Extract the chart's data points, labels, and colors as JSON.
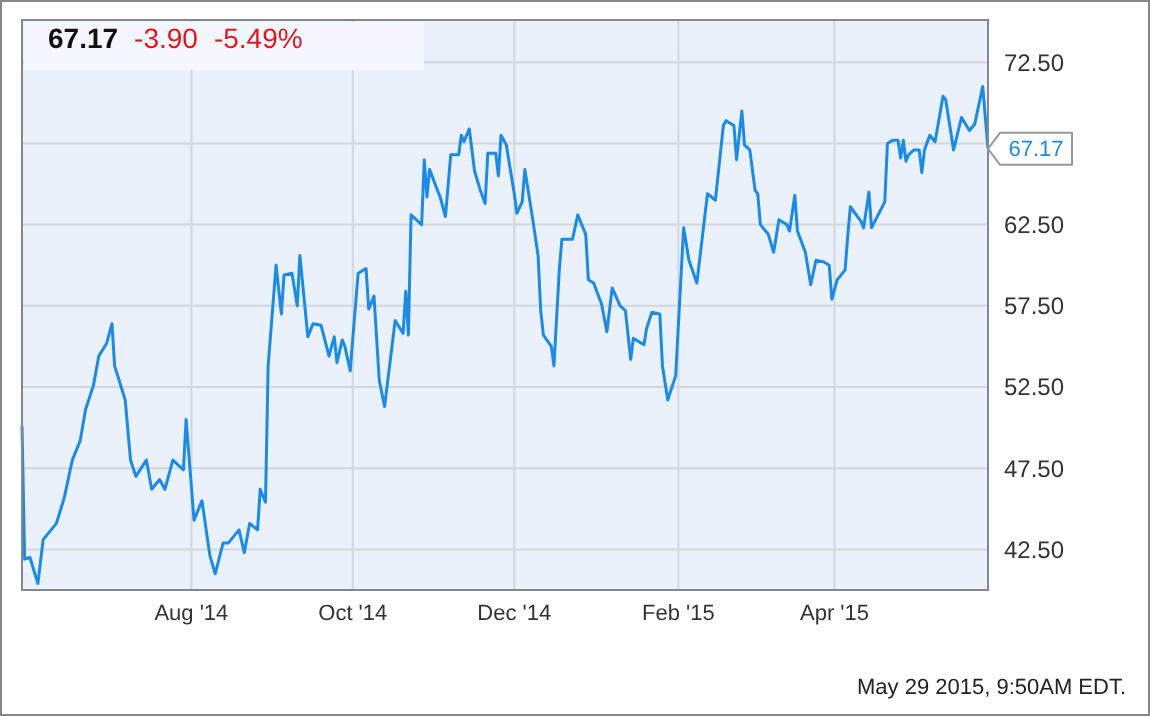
{
  "chart_data": {
    "type": "line",
    "title": "67.17",
    "subtitle": "-3.90 -5.49%",
    "annotations": [
      {
        "text": "67.17",
        "x": "2015-05-29",
        "y": 67.17
      },
      "May 29 2015, 9:50AM EDT."
    ],
    "xlim": [
      "2014-05-29",
      "2015-05-29"
    ],
    "xticks": [
      {
        "value": "2014-08-01",
        "label": "Aug '14"
      },
      {
        "value": "2014-10-01",
        "label": "Oct '14"
      },
      {
        "value": "2014-12-01",
        "label": "Dec '14"
      },
      {
        "value": "2015-02-01",
        "label": "Feb '15"
      },
      {
        "value": "2015-04-01",
        "label": "Apr '15"
      }
    ],
    "ylim": [
      40,
      75.1
    ],
    "yticks": [
      {
        "value": 42.5,
        "label": "42.50"
      },
      {
        "value": 47.5,
        "label": "47.50"
      },
      {
        "value": 52.5,
        "label": "52.50"
      },
      {
        "value": 57.5,
        "label": "57.50"
      },
      {
        "value": 62.5,
        "label": "62.50"
      },
      {
        "value": 67.5,
        "label": null
      },
      {
        "value": 72.5,
        "label": "72.50"
      }
    ],
    "grid": true,
    "marker": "none",
    "line_style": "solid",
    "series": [
      {
        "color": "#1a8be8",
        "x": [
          "2014-05-29",
          "2014-05-30",
          "2014-06-01",
          "2014-06-04",
          "2014-06-06",
          "2014-06-11",
          "2014-06-14",
          "2014-06-17",
          "2014-06-20",
          "2014-06-22",
          "2014-06-25",
          "2014-06-27",
          "2014-06-30",
          "2014-07-02",
          "2014-07-03",
          "2014-07-07",
          "2014-07-09",
          "2014-07-11",
          "2014-07-15",
          "2014-07-17",
          "2014-07-20",
          "2014-07-22",
          "2014-07-25",
          "2014-07-29",
          "2014-07-30",
          "2014-08-02",
          "2014-08-05",
          "2014-08-08",
          "2014-08-10",
          "2014-08-13",
          "2014-08-15",
          "2014-08-19",
          "2014-08-21",
          "2014-08-23",
          "2014-08-26",
          "2014-08-27",
          "2014-08-29",
          "2014-08-30",
          "2014-09-02",
          "2014-09-04",
          "2014-09-05",
          "2014-09-08",
          "2014-09-10",
          "2014-09-11",
          "2014-09-14",
          "2014-09-16",
          "2014-09-19",
          "2014-09-22",
          "2014-09-24",
          "2014-09-25",
          "2014-09-27",
          "2014-09-28",
          "2014-09-30",
          "2014-10-03",
          "2014-10-06",
          "2014-10-07",
          "2014-10-09",
          "2014-10-11",
          "2014-10-13",
          "2014-10-17",
          "2014-10-20",
          "2014-10-21",
          "2014-10-22",
          "2014-10-23",
          "2014-10-27",
          "2014-10-28",
          "2014-10-29",
          "2014-10-30",
          "2014-11-02",
          "2014-11-03",
          "2014-11-05",
          "2014-11-07",
          "2014-11-10",
          "2014-11-11",
          "2014-11-12",
          "2014-11-14",
          "2014-11-16",
          "2014-11-18",
          "2014-11-20",
          "2014-11-21",
          "2014-11-24",
          "2014-11-25",
          "2014-11-26",
          "2014-11-28",
          "2014-12-01",
          "2014-12-02",
          "2014-12-04",
          "2014-12-05",
          "2014-12-08",
          "2014-12-10",
          "2014-12-11",
          "2014-12-12",
          "2014-12-15",
          "2014-12-16",
          "2014-12-18",
          "2014-12-19",
          "2014-12-23",
          "2014-12-25",
          "2014-12-28",
          "2014-12-29",
          "2014-12-31",
          "2015-01-03",
          "2015-01-05",
          "2015-01-07",
          "2015-01-10",
          "2015-01-12",
          "2015-01-14",
          "2015-01-15",
          "2015-01-19",
          "2015-01-20",
          "2015-01-22",
          "2015-01-25",
          "2015-01-26",
          "2015-01-28",
          "2015-01-31",
          "2015-02-01",
          "2015-02-03",
          "2015-02-05",
          "2015-02-08",
          "2015-02-12",
          "2015-02-15",
          "2015-02-18",
          "2015-02-19",
          "2015-02-22",
          "2015-02-23",
          "2015-02-25",
          "2015-02-26",
          "2015-02-28",
          "2015-03-02",
          "2015-03-03",
          "2015-03-04",
          "2015-03-07",
          "2015-03-09",
          "2015-03-11",
          "2015-03-14",
          "2015-03-15",
          "2015-03-17",
          "2015-03-18",
          "2015-03-21",
          "2015-03-23",
          "2015-03-25",
          "2015-03-28",
          "2015-03-30",
          "2015-03-31",
          "2015-04-02",
          "2015-04-05",
          "2015-04-06",
          "2015-04-07",
          "2015-04-11",
          "2015-04-12",
          "2015-04-14",
          "2015-04-15",
          "2015-04-20",
          "2015-04-21",
          "2015-04-23",
          "2015-04-25",
          "2015-04-26",
          "2015-04-27",
          "2015-04-28",
          "2015-04-29",
          "2015-05-01",
          "2015-05-03",
          "2015-05-04",
          "2015-05-05",
          "2015-05-07",
          "2015-05-09",
          "2015-05-12",
          "2015-05-13",
          "2015-05-16",
          "2015-05-19",
          "2015-05-22",
          "2015-05-24",
          "2015-05-27",
          "2015-05-29"
        ],
        "values": [
          50.1,
          41.9,
          42.0,
          40.4,
          43.1,
          44.1,
          45.7,
          48.0,
          49.2,
          51.1,
          52.6,
          54.4,
          55.2,
          56.4,
          53.8,
          51.7,
          48.0,
          47.0,
          48.0,
          46.2,
          46.8,
          46.2,
          48.0,
          47.4,
          50.5,
          44.3,
          45.5,
          42.1,
          41.0,
          42.9,
          42.9,
          43.7,
          42.3,
          44.1,
          43.7,
          46.2,
          45.4,
          53.8,
          60.0,
          57.0,
          59.4,
          59.5,
          57.5,
          60.6,
          55.6,
          56.4,
          56.3,
          54.4,
          55.6,
          54.0,
          55.4,
          55.0,
          53.5,
          59.5,
          59.8,
          57.3,
          58.1,
          52.9,
          51.3,
          56.6,
          55.8,
          58.4,
          55.7,
          63.1,
          62.5,
          66.5,
          64.2,
          65.9,
          64.6,
          64.2,
          63.0,
          66.8,
          66.8,
          68.0,
          67.6,
          68.4,
          65.8,
          64.7,
          63.8,
          66.9,
          66.9,
          65.5,
          68.0,
          67.4,
          64.4,
          63.2,
          63.9,
          65.9,
          62.8,
          60.6,
          57.2,
          55.7,
          55.0,
          53.8,
          59.7,
          61.6,
          61.6,
          63.1,
          61.9,
          59.1,
          58.9,
          57.6,
          55.9,
          58.6,
          57.5,
          57.2,
          54.2,
          55.5,
          55.1,
          56.1,
          57.1,
          57.0,
          53.8,
          51.7,
          53.2,
          56.3,
          62.3,
          60.3,
          58.9,
          64.4,
          64.0,
          68.6,
          68.9,
          68.6,
          66.5,
          69.5,
          67.4,
          67.1,
          64.6,
          64.4,
          62.5,
          61.9,
          60.8,
          62.8,
          62.5,
          62.1,
          64.3,
          62.1,
          60.8,
          58.8,
          60.3,
          60.2,
          60.0,
          57.9,
          59.1,
          59.7,
          61.8,
          63.6,
          62.7,
          62.3,
          64.5,
          62.3,
          63.9,
          67.5,
          67.7,
          67.7,
          66.6,
          67.7,
          66.4,
          66.8,
          67.1,
          67.1,
          65.7,
          67.1,
          68.0,
          67.6,
          70.4,
          70.2,
          67.1,
          69.1,
          68.3,
          68.7,
          71.0,
          67.2
        ]
      }
    ]
  }
}
